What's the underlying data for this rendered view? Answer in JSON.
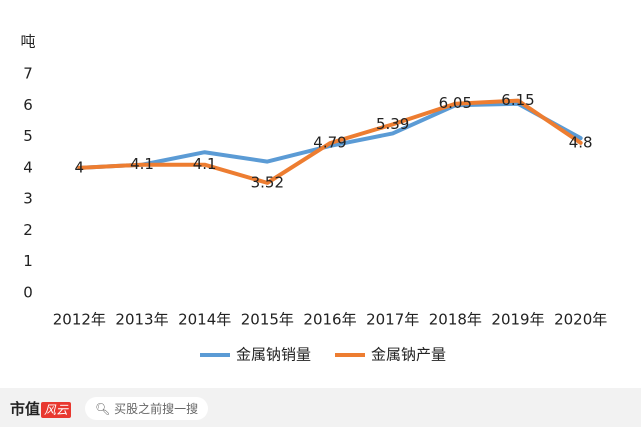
{
  "chart_data": {
    "type": "line",
    "y_axis_label": "吨",
    "categories": [
      "2012年",
      "2013年",
      "2014年",
      "2015年",
      "2016年",
      "2017年",
      "2018年",
      "2019年",
      "2020年"
    ],
    "series": [
      {
        "name": "金属钠销量",
        "color": "#5b9bd5",
        "values": [
          4.0,
          4.1,
          4.5,
          4.2,
          4.7,
          5.1,
          6.0,
          6.05,
          4.95
        ],
        "data_labels": false
      },
      {
        "name": "金属钠产量",
        "color": "#ed7d31",
        "values": [
          4,
          4.1,
          4.1,
          3.52,
          4.79,
          5.39,
          6.05,
          6.15,
          4.8
        ],
        "data_labels": true
      }
    ],
    "ylim": [
      0,
      7
    ],
    "yticks": [
      0,
      1,
      2,
      3,
      4,
      5,
      6,
      7
    ],
    "grid": false,
    "legend": "bottom"
  },
  "footer": {
    "brand": "市值",
    "logo": "风云",
    "search": "买股之前搜一搜"
  }
}
